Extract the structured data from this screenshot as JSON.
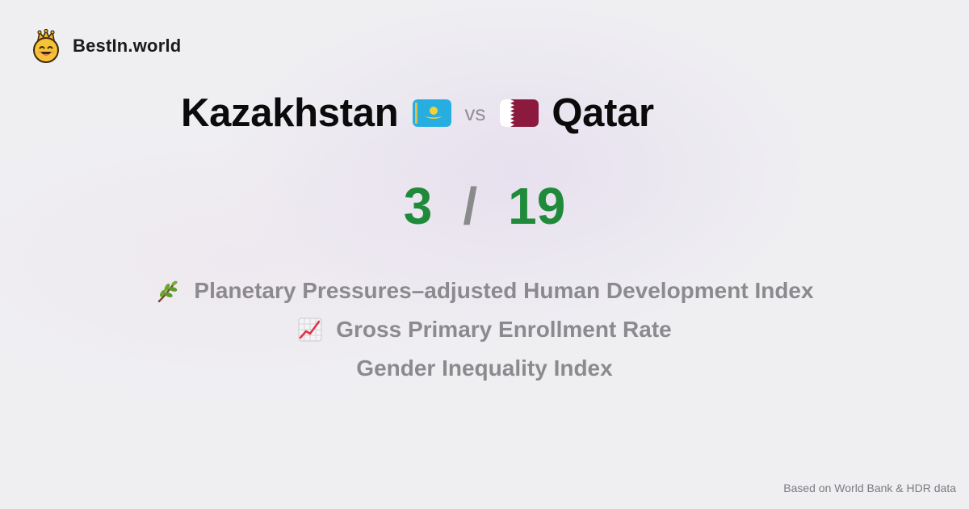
{
  "brand": {
    "name": "BestIn.world",
    "logo_icon": "crowned-smiley-logo"
  },
  "comparison": {
    "left": {
      "name": "Kazakhstan",
      "flag_icon": "kazakhstan-flag-icon"
    },
    "vs_label": "vs",
    "right": {
      "name": "Qatar",
      "flag_icon": "qatar-flag-icon"
    }
  },
  "score": {
    "left": "3",
    "separator": "/",
    "right": "19",
    "color": "#1f8a3a"
  },
  "metrics": [
    {
      "label": "Planetary Pressures–adjusted Human Development Index",
      "icon": "herb-icon"
    },
    {
      "label": "Gross Primary Enrollment Rate",
      "icon": "chart-increasing-icon"
    },
    {
      "label": "Gender Inequality Index",
      "icon": ""
    }
  ],
  "footer": {
    "source": "Based on World Bank & HDR data"
  }
}
